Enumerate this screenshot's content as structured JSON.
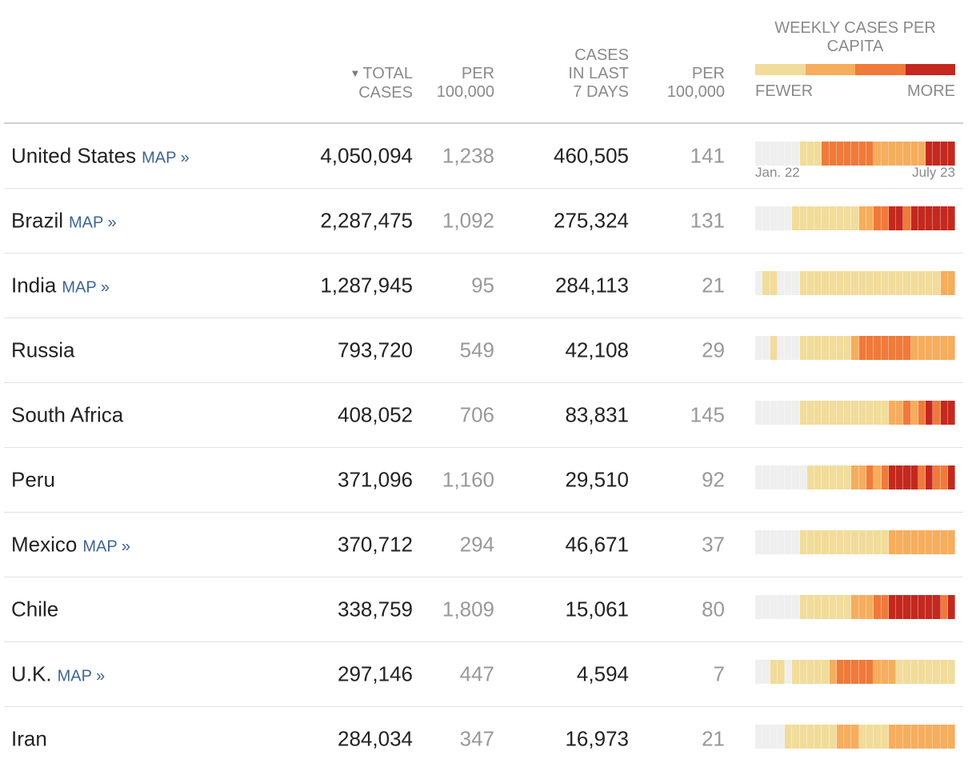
{
  "colors": {
    "none": "#efefef",
    "level1": "#f1dc9b",
    "level2": "#f6ad5d",
    "level3": "#ef7a3a",
    "level4": "#c4281e"
  },
  "header": {
    "sort_caret": "▼",
    "total_cases": [
      "TOTAL",
      "CASES"
    ],
    "per_100k_1": [
      "PER",
      "100,000"
    ],
    "cases_last_7": [
      "CASES",
      "IN LAST",
      "7 DAYS"
    ],
    "per_100k_2": [
      "PER",
      "100,000"
    ],
    "legend_title": [
      "WEEKLY CASES PER",
      "CAPITA"
    ],
    "legend_fewer": "FEWER",
    "legend_more": "MORE"
  },
  "sparkline_labels": {
    "start": "Jan. 22",
    "end": "July 23"
  },
  "rows": [
    {
      "country": "United States",
      "map": "MAP »",
      "total": "4,050,094",
      "per100k": "1,238",
      "cases7": "460,505",
      "per100k7": "141",
      "weeks": [
        0,
        0,
        0,
        0,
        0,
        0,
        1,
        1,
        1,
        3,
        3,
        3,
        3,
        3,
        3,
        3,
        2,
        2,
        2,
        2,
        2,
        2,
        2,
        4,
        4,
        4,
        4
      ]
    },
    {
      "country": "Brazil",
      "map": "MAP »",
      "total": "2,287,475",
      "per100k": "1,092",
      "cases7": "275,324",
      "per100k7": "131",
      "weeks": [
        0,
        0,
        0,
        0,
        0,
        1,
        1,
        1,
        1,
        1,
        1,
        1,
        1,
        1,
        2,
        2,
        3,
        3,
        4,
        4,
        3,
        4,
        4,
        4,
        4,
        4,
        4
      ]
    },
    {
      "country": "India",
      "map": "MAP »",
      "total": "1,287,945",
      "per100k": "95",
      "cases7": "284,113",
      "per100k7": "21",
      "weeks": [
        0,
        1,
        1,
        0,
        0,
        0,
        1,
        1,
        1,
        1,
        1,
        1,
        1,
        1,
        1,
        1,
        1,
        1,
        1,
        1,
        1,
        1,
        1,
        1,
        1,
        2,
        2
      ]
    },
    {
      "country": "Russia",
      "map": "",
      "total": "793,720",
      "per100k": "549",
      "cases7": "42,108",
      "per100k7": "29",
      "weeks": [
        0,
        0,
        1,
        0,
        0,
        0,
        1,
        1,
        1,
        1,
        1,
        1,
        1,
        2,
        3,
        3,
        3,
        3,
        3,
        3,
        3,
        2,
        2,
        2,
        2,
        2,
        2
      ]
    },
    {
      "country": "South Africa",
      "map": "",
      "total": "408,052",
      "per100k": "706",
      "cases7": "83,831",
      "per100k7": "145",
      "weeks": [
        0,
        0,
        0,
        0,
        0,
        0,
        1,
        1,
        1,
        1,
        1,
        1,
        1,
        1,
        1,
        1,
        1,
        1,
        2,
        2,
        3,
        2,
        3,
        4,
        3,
        4,
        4
      ]
    },
    {
      "country": "Peru",
      "map": "",
      "total": "371,096",
      "per100k": "1,160",
      "cases7": "29,510",
      "per100k7": "92",
      "weeks": [
        0,
        0,
        0,
        0,
        0,
        0,
        0,
        1,
        1,
        1,
        1,
        1,
        1,
        2,
        2,
        3,
        2,
        3,
        4,
        4,
        4,
        4,
        3,
        4,
        3,
        3,
        4
      ]
    },
    {
      "country": "Mexico",
      "map": "MAP »",
      "total": "370,712",
      "per100k": "294",
      "cases7": "46,671",
      "per100k7": "37",
      "weeks": [
        0,
        0,
        0,
        0,
        0,
        0,
        1,
        1,
        1,
        1,
        1,
        1,
        1,
        1,
        1,
        1,
        1,
        1,
        2,
        2,
        2,
        2,
        2,
        2,
        2,
        2,
        2
      ]
    },
    {
      "country": "Chile",
      "map": "",
      "total": "338,759",
      "per100k": "1,809",
      "cases7": "15,061",
      "per100k7": "80",
      "weeks": [
        0,
        0,
        0,
        0,
        0,
        0,
        1,
        1,
        1,
        1,
        1,
        1,
        1,
        2,
        2,
        2,
        3,
        3,
        4,
        4,
        4,
        4,
        4,
        4,
        4,
        3,
        4
      ]
    },
    {
      "country": "U.K.",
      "map": "MAP »",
      "total": "297,146",
      "per100k": "447",
      "cases7": "4,594",
      "per100k7": "7",
      "weeks": [
        0,
        0,
        1,
        1,
        0,
        1,
        1,
        1,
        1,
        1,
        2,
        3,
        3,
        3,
        3,
        3,
        2,
        2,
        2,
        1,
        1,
        1,
        1,
        1,
        1,
        1,
        1
      ]
    },
    {
      "country": "Iran",
      "map": "",
      "total": "284,034",
      "per100k": "347",
      "cases7": "16,973",
      "per100k7": "21",
      "weeks": [
        0,
        0,
        0,
        0,
        1,
        1,
        1,
        1,
        1,
        1,
        1,
        2,
        2,
        2,
        1,
        1,
        1,
        1,
        2,
        2,
        2,
        2,
        2,
        2,
        2,
        2,
        2
      ]
    }
  ]
}
